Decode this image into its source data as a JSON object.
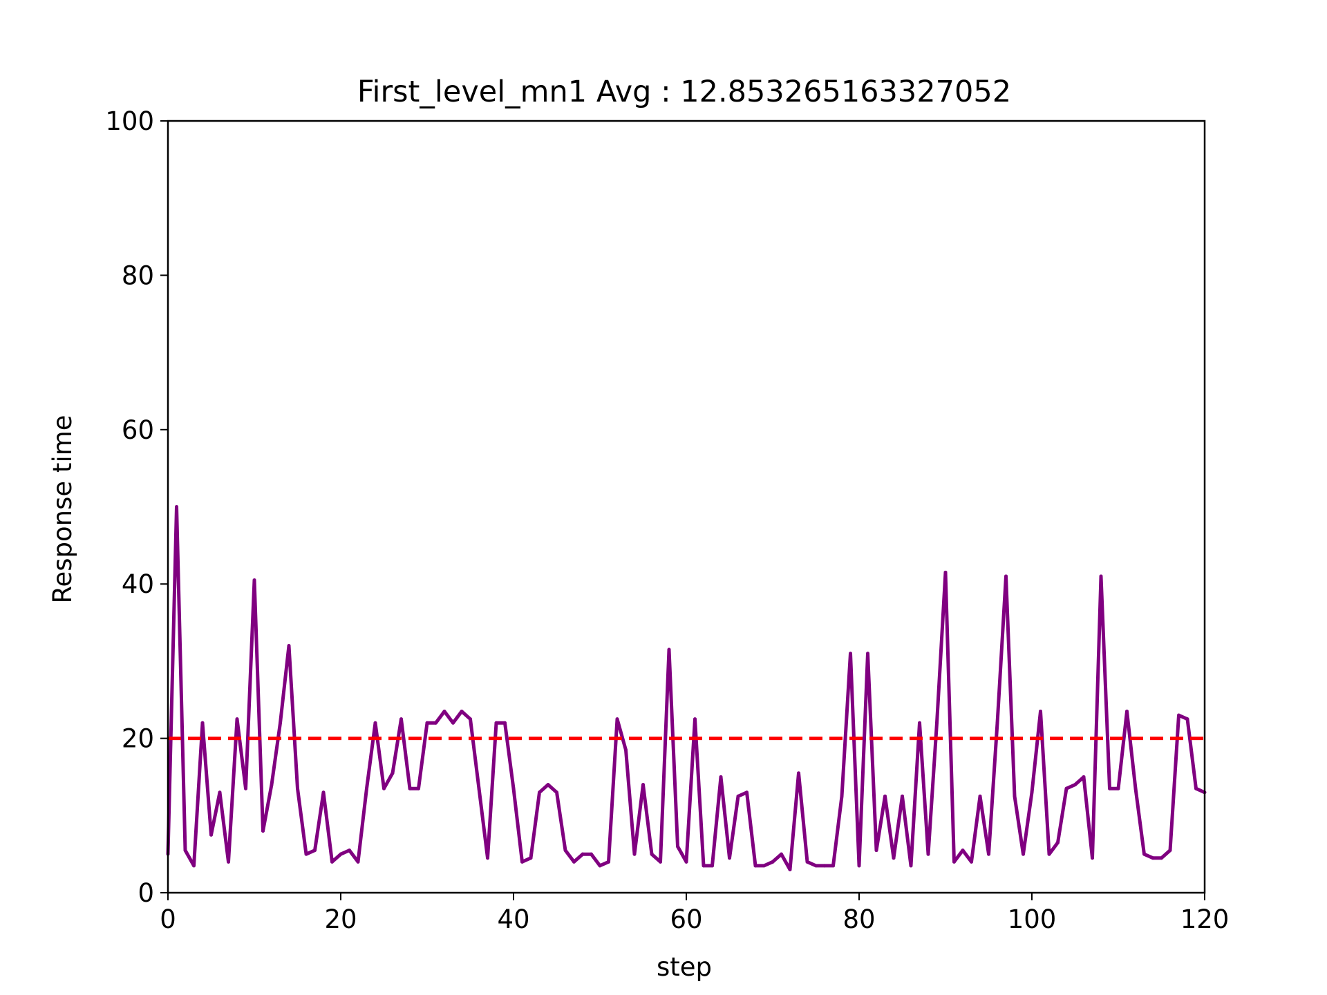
{
  "chart_data": {
    "type": "line",
    "title": "First_level_mn1 Avg : 12.853265163327052",
    "xlabel": "step",
    "ylabel": "Response time",
    "xlim": [
      0,
      120
    ],
    "ylim": [
      0,
      100
    ],
    "x_ticks": [
      "0",
      "20",
      "40",
      "60",
      "80",
      "100",
      "120"
    ],
    "y_ticks": [
      "0",
      "20",
      "40",
      "60",
      "80",
      "100"
    ],
    "grid": false,
    "line_color": "#800080",
    "threshold": {
      "value": 20,
      "color": "#ff0000",
      "style": "dashed"
    },
    "series": [
      {
        "values": [
          5,
          50,
          5.5,
          3.5,
          22,
          7.5,
          13,
          4,
          22.5,
          13.5,
          40.5,
          8,
          14,
          22,
          32,
          13.5,
          5,
          5.5,
          13,
          4,
          5,
          5.5,
          4,
          13.5,
          22,
          13.5,
          15.5,
          22.5,
          13.5,
          13.5,
          22,
          22,
          23.5,
          22,
          23.5,
          22.5,
          13.5,
          4.5,
          22,
          22,
          13.5,
          4,
          4.5,
          13,
          14,
          13,
          5.5,
          4,
          5,
          5,
          3.5,
          4,
          22.5,
          18.5,
          5,
          14,
          5,
          4,
          31.5,
          6,
          4,
          22.5,
          3.5,
          3.5,
          15,
          4.5,
          12.5,
          13,
          3.5,
          3.5,
          4,
          5,
          3,
          15.5,
          4,
          3.5,
          3.5,
          3.5,
          12.5,
          31,
          3.5,
          31,
          5.5,
          12.5,
          4.5,
          12.5,
          3.5,
          22,
          5,
          22,
          41.5,
          4,
          5.5,
          4,
          12.5,
          5,
          22,
          41,
          12.5,
          5,
          13,
          23.5,
          5,
          6.5,
          13.5,
          14,
          15,
          4.5,
          41,
          13.5,
          13.5,
          23.5,
          13.5,
          5,
          4.5,
          4.5,
          5.5,
          23,
          22.5,
          13.5,
          13
        ]
      }
    ]
  }
}
